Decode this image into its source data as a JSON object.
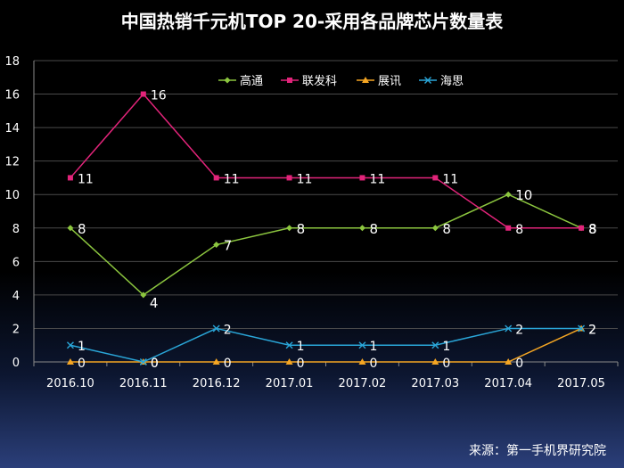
{
  "chart_data": {
    "type": "line",
    "title": "中国热销千元机TOP 20-采用各品牌芯片数量表",
    "source": "来源：第一手机界研究院",
    "categories": [
      "2016.10",
      "2016.11",
      "2016.12",
      "2017.01",
      "2017.02",
      "2017.03",
      "2017.04",
      "2017.05"
    ],
    "ylim": [
      0,
      18
    ],
    "yticks": [
      0,
      2,
      4,
      6,
      8,
      10,
      12,
      14,
      16,
      18
    ],
    "grid": true,
    "legend": "top",
    "series": [
      {
        "name": "高通",
        "values": [
          8,
          4,
          7,
          8,
          8,
          8,
          10,
          8
        ],
        "color": "#8cc63f",
        "marker": "diamond"
      },
      {
        "name": "联发科",
        "values": [
          11,
          16,
          11,
          11,
          11,
          11,
          8,
          8
        ],
        "color": "#e2247a",
        "marker": "square"
      },
      {
        "name": "展讯",
        "values": [
          0,
          0,
          0,
          0,
          0,
          0,
          0,
          2
        ],
        "color": "#f5a623",
        "marker": "triangle"
      },
      {
        "name": "海思",
        "values": [
          1,
          0,
          2,
          1,
          1,
          1,
          2,
          2
        ],
        "color": "#2aa6d8",
        "marker": "x"
      }
    ]
  }
}
